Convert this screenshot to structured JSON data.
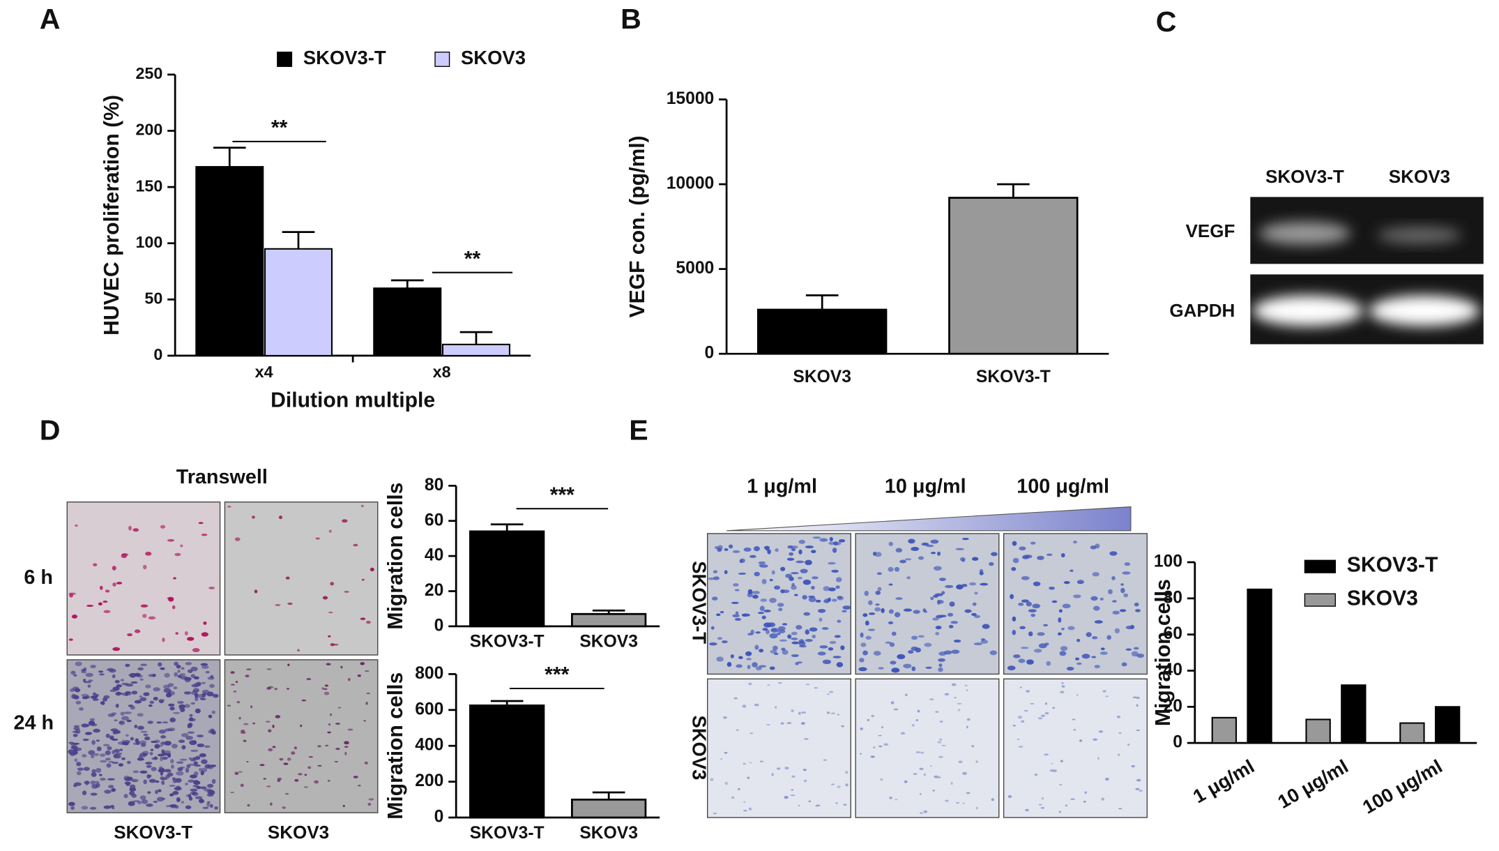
{
  "chart_data": [
    {
      "type": "bar",
      "ylabel": "HUVEC proliferation (%)",
      "xlabel": "Dilution multiple",
      "categories": [
        "x4",
        "x8"
      ],
      "series": [
        {
          "name": "SKOV3-T",
          "color": "#000000",
          "values": [
            168,
            60
          ],
          "errors": [
            17,
            7
          ]
        },
        {
          "name": "SKOV3",
          "color": "#ccccff",
          "values": [
            95,
            10
          ],
          "errors": [
            15,
            11
          ]
        }
      ],
      "ylim": [
        0,
        250
      ],
      "yticks": [
        0,
        50,
        100,
        150,
        200,
        250
      ],
      "annotations": [
        "**",
        "**"
      ]
    },
    {
      "type": "bar",
      "ylabel": "VEGF con. (pg/ml)",
      "categories": [
        "SKOV3",
        "SKOV3-T"
      ],
      "values": [
        2600,
        9200
      ],
      "errors": [
        850,
        800
      ],
      "colors": [
        "#000000",
        "#999999"
      ],
      "ylim": [
        0,
        15000
      ],
      "yticks": [
        0,
        5000,
        10000,
        15000
      ]
    },
    {
      "type": "bar",
      "ylabel": "Migration cells",
      "categories": [
        "SKOV3-T",
        "SKOV3"
      ],
      "values": [
        54,
        7
      ],
      "errors": [
        4,
        2
      ],
      "colors": [
        "#000000",
        "#999999"
      ],
      "ylim": [
        0,
        80
      ],
      "yticks": [
        0,
        20,
        40,
        60,
        80
      ],
      "annotations": [
        "***"
      ]
    },
    {
      "type": "bar",
      "ylabel": "Migration cells",
      "categories": [
        "SKOV3-T",
        "SKOV3"
      ],
      "values": [
        625,
        100
      ],
      "errors": [
        25,
        40
      ],
      "colors": [
        "#000000",
        "#999999"
      ],
      "ylim": [
        0,
        800
      ],
      "yticks": [
        0,
        200,
        400,
        600,
        800
      ],
      "annotations": [
        "***"
      ]
    },
    {
      "type": "bar",
      "ylabel": "Migration cells",
      "categories": [
        "1 μg/ml",
        "10 μg/ml",
        "100 μg/ml"
      ],
      "series": [
        {
          "name": "SKOV3-T",
          "color": "#000000",
          "values": [
            85,
            32,
            20
          ]
        },
        {
          "name": "SKOV3",
          "color": "#999999",
          "values": [
            14,
            13,
            11
          ]
        }
      ],
      "ylim": [
        0,
        100
      ],
      "yticks": [
        0,
        20,
        40,
        60,
        80,
        100
      ]
    }
  ],
  "figure": {
    "panel_labels": [
      "A",
      "B",
      "C",
      "D",
      "E"
    ],
    "c": {
      "lanes": [
        "SKOV3-T",
        "SKOV3"
      ],
      "bands": [
        "VEGF",
        "GAPDH"
      ]
    },
    "d": {
      "title": "Transwell",
      "rows": [
        "6 h",
        "24 h"
      ],
      "columns": [
        "SKOV3-T",
        "SKOV3"
      ]
    },
    "e": {
      "concentrations": [
        "1 μg/ml",
        "10 μg/ml",
        "100 μg/ml"
      ],
      "rows": [
        "SKOV3-T",
        "SKOV3"
      ]
    }
  }
}
